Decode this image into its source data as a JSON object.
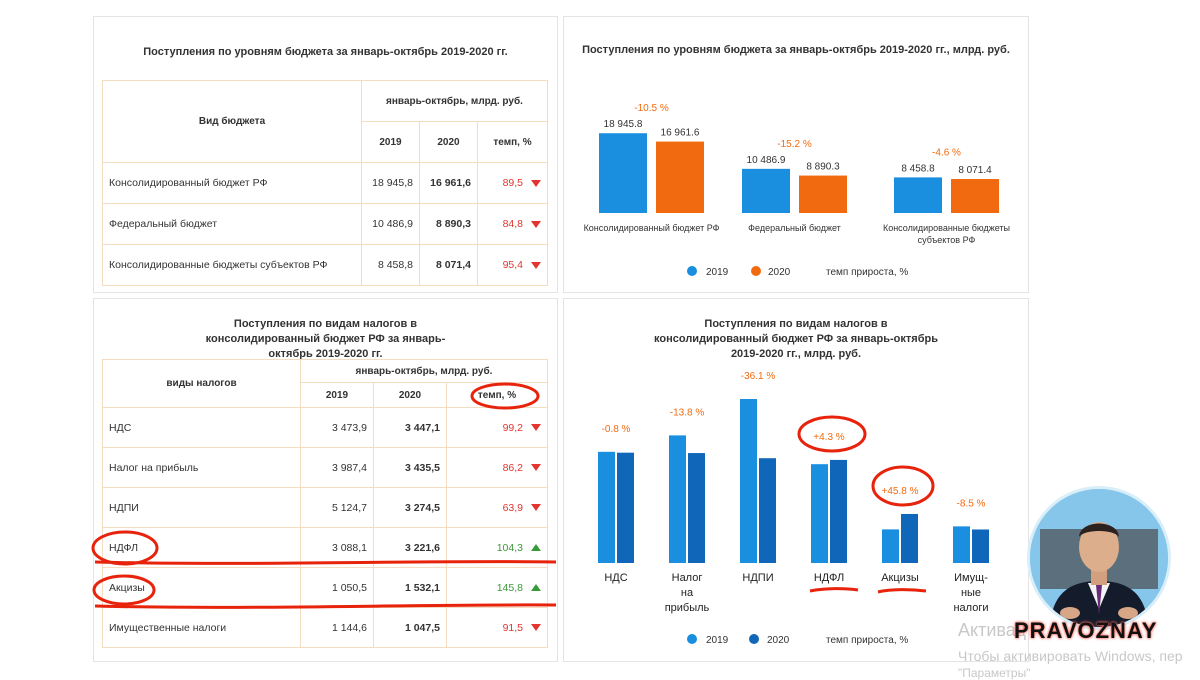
{
  "panel1": {
    "title": "Поступления по уровням бюджета  за январь-октябрь 2019-2020 гг.",
    "col_type": "Вид бюджета",
    "col_period": "январь-октябрь, млрд. руб.",
    "col_2019": "2019",
    "col_2020": "2020",
    "col_rate": "темп, %",
    "rows": [
      {
        "name": "Консолидированный бюджет РФ",
        "v2019": "18 945,8",
        "v2020": "16 961,6",
        "rate": "89,5"
      },
      {
        "name": "Федеральный бюджет",
        "v2019": "10 486,9",
        "v2020": "8 890,3",
        "rate": "84,8"
      },
      {
        "name": "Консолидированные бюджеты субъектов РФ",
        "v2019": "8 458,8",
        "v2020": "8 071,4",
        "rate": "95,4"
      }
    ]
  },
  "panel3": {
    "title": "Поступления по видам налогов в консолидированный бюджет РФ  за январь-октябрь 2019-2020 гг.",
    "col_type": "виды налогов",
    "col_period": "январь-октябрь, млрд. руб.",
    "col_2019": "2019",
    "col_2020": "2020",
    "col_rate": "темп, %",
    "rows": [
      {
        "name": "НДС",
        "v2019": "3 473,9",
        "v2020": "3 447,1",
        "rate": "99,2"
      },
      {
        "name": "Налог на прибыль",
        "v2019": "3 987,4",
        "v2020": "3 435,5",
        "rate": "86,2"
      },
      {
        "name": "НДПИ",
        "v2019": "5 124,7",
        "v2020": "3 274,5",
        "rate": "63,9"
      },
      {
        "name": "НДФЛ",
        "v2019": "3 088,1",
        "v2020": "3 221,6",
        "rate": "104,3"
      },
      {
        "name": "Акцизы",
        "v2019": "1 050,5",
        "v2020": "1 532,1",
        "rate": "145,8"
      },
      {
        "name": "Имущественные налоги",
        "v2019": "1 144,6",
        "v2020": "1 047,5",
        "rate": "91,5"
      }
    ]
  },
  "chart_data": [
    {
      "type": "bar",
      "title": "Поступления по уровням бюджета  за январь-октябрь 2019-2020 гг., млрд. руб.",
      "categories": [
        "Консолидированный бюджет РФ",
        "Федеральный бюджет",
        "Консолидированные бюджеты субъектов РФ"
      ],
      "series": [
        {
          "name": "2019",
          "values": [
            18945.8,
            10486.9,
            8458.8
          ],
          "labels": [
            "18 945.8",
            "10 486.9",
            "8 458.8"
          ]
        },
        {
          "name": "2020",
          "values": [
            16961.6,
            8890.3,
            8071.4
          ],
          "labels": [
            "16 961.6",
            "8 890.3",
            "8 071.4"
          ]
        }
      ],
      "growth_labels": [
        "-10.5 %",
        "-15.2 %",
        "-4.6 %"
      ],
      "legend_extra": "темп прироста, %",
      "colors": {
        "s2019": "#1a8fe0",
        "s2020": "#f26a10",
        "growth": "#f26a10"
      }
    },
    {
      "type": "bar",
      "title": "Поступления по видам налогов в консолидированный бюджет РФ  за январь-октябрь 2019-2020 гг., млрд. руб.",
      "categories": [
        "НДС",
        "Налог на прибыль",
        "НДПИ",
        "НДФЛ",
        "Акцизы",
        "Имущественные налоги"
      ],
      "category_lines": [
        [
          "НДС"
        ],
        [
          "Налог",
          "на",
          "прибыль"
        ],
        [
          "НДПИ"
        ],
        [
          "НДФЛ"
        ],
        [
          "Акцизы"
        ],
        [
          "Имущ-",
          "ные",
          "налоги"
        ]
      ],
      "series": [
        {
          "name": "2019",
          "values": [
            3473.9,
            3987.4,
            5124.7,
            3088.1,
            1050.5,
            1144.6
          ]
        },
        {
          "name": "2020",
          "values": [
            3447.1,
            3435.5,
            3274.5,
            3221.6,
            1532.1,
            1047.5
          ]
        }
      ],
      "growth_labels": [
        "-0.8 %",
        "-13.8 %",
        "-36.1 %",
        "+4.3 %",
        "+45.8 %",
        "-8.5 %"
      ],
      "legend_extra": "темп прироста, %",
      "colors": {
        "s2019": "#1a8fe0",
        "s2020": "#1066b8",
        "growth": "#f26a10"
      }
    }
  ],
  "brand": "PRAVOZNAY",
  "watermark": {
    "line1": "Активац",
    "line2": "Чтобы активировать Windows, пер",
    "line3": "\"Параметры\""
  },
  "colors": {
    "annotation": "#e8230c"
  }
}
